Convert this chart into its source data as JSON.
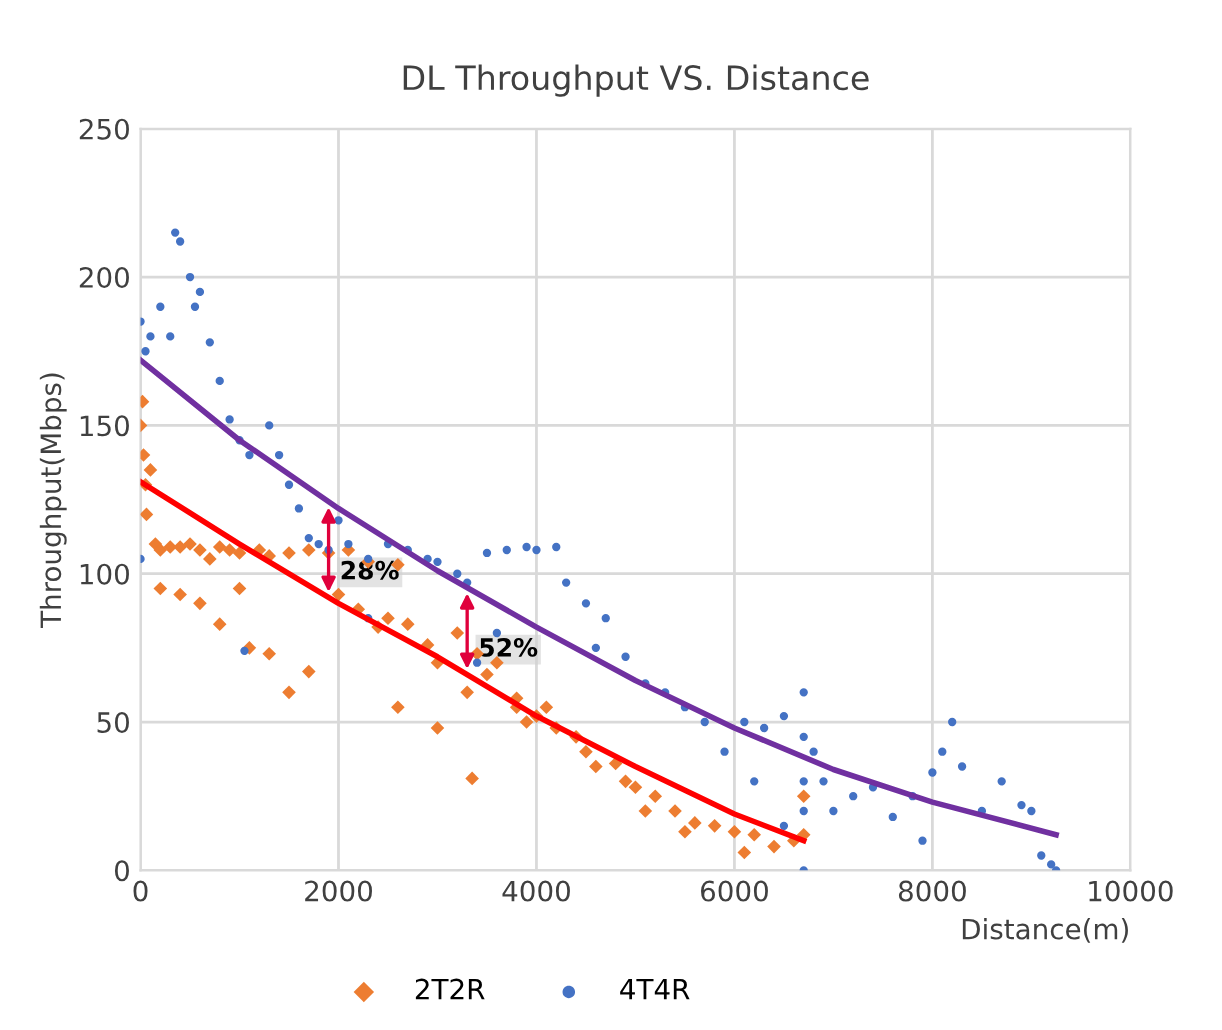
{
  "chart_data": {
    "type": "scatter",
    "title": "DL Throughput VS. Distance",
    "xlabel": "Distance(m)",
    "ylabel": "Throughput(Mbps)",
    "xlim": [
      0,
      10000
    ],
    "xticks": [
      0,
      2000,
      4000,
      6000,
      8000,
      10000
    ],
    "ylim": [
      0,
      250
    ],
    "yticks": [
      0,
      50,
      100,
      150,
      200,
      250
    ],
    "grid": true,
    "legend": "bottom",
    "series": [
      {
        "name": "2T2R",
        "color": "#ed7d31",
        "marker": "diamond",
        "x": [
          0,
          20,
          30,
          50,
          60,
          100,
          150,
          200,
          300,
          400,
          500,
          600,
          700,
          800,
          900,
          1000,
          1200,
          1300,
          1500,
          1700,
          1900,
          2100,
          2300,
          2600,
          200,
          400,
          600,
          800,
          1100,
          1300,
          1500,
          1700,
          2000,
          2200,
          2400,
          2500,
          2700,
          2900,
          3000,
          3200,
          3300,
          3400,
          3500,
          3600,
          3800,
          3900,
          4100,
          4200,
          4400,
          4600,
          4800,
          5000,
          5200,
          5400,
          5600,
          5800,
          6000,
          6200,
          6400,
          6600,
          6700,
          6700,
          3800,
          4000,
          3000,
          2600,
          4500,
          5100,
          4900,
          5500,
          6100,
          1000,
          3350
        ],
        "values": [
          150,
          158,
          140,
          130,
          120,
          135,
          110,
          108,
          109,
          109,
          110,
          108,
          105,
          109,
          108,
          107,
          108,
          106,
          107,
          108,
          107,
          108,
          104,
          103,
          95,
          93,
          90,
          83,
          75,
          73,
          60,
          67,
          93,
          88,
          82,
          85,
          83,
          76,
          70,
          80,
          60,
          73,
          66,
          70,
          55,
          50,
          55,
          48,
          45,
          35,
          36,
          28,
          25,
          20,
          16,
          15,
          13,
          12,
          8,
          10,
          12,
          25,
          58,
          52,
          48,
          55,
          40,
          20,
          30,
          13,
          6,
          95,
          31
        ]
      },
      {
        "name": "4T4R",
        "color": "#4472c4",
        "marker": "circle",
        "x": [
          0,
          50,
          100,
          200,
          300,
          350,
          400,
          500,
          550,
          600,
          700,
          800,
          900,
          1000,
          1100,
          1300,
          1400,
          1500,
          1600,
          1700,
          1800,
          1900,
          2000,
          2100,
          2300,
          2500,
          2700,
          2900,
          3000,
          3200,
          3300,
          3500,
          3700,
          3900,
          4000,
          4200,
          4300,
          4500,
          4700,
          4900,
          5100,
          5300,
          5500,
          5700,
          5900,
          6100,
          6300,
          6500,
          6700,
          6700,
          6700,
          6700,
          6700,
          6800,
          6900,
          7000,
          7200,
          7400,
          7600,
          7800,
          8000,
          8100,
          8200,
          8300,
          8500,
          8700,
          8900,
          9000,
          9100,
          9200,
          9250,
          0,
          1050,
          2300,
          3400,
          3600,
          4600,
          6200,
          6500,
          7900
        ],
        "values": [
          185,
          175,
          180,
          190,
          180,
          215,
          212,
          200,
          190,
          195,
          178,
          165,
          152,
          145,
          140,
          150,
          140,
          130,
          122,
          112,
          110,
          108,
          118,
          110,
          105,
          110,
          108,
          105,
          104,
          100,
          97,
          107,
          108,
          109,
          108,
          109,
          97,
          90,
          85,
          72,
          63,
          60,
          55,
          50,
          40,
          50,
          48,
          52,
          60,
          45,
          30,
          20,
          0,
          40,
          30,
          20,
          25,
          28,
          18,
          25,
          33,
          40,
          50,
          35,
          20,
          30,
          22,
          20,
          5,
          2,
          0,
          105,
          74,
          85,
          70,
          80,
          75,
          30,
          15,
          10
        ]
      },
      {
        "type": "line",
        "color": "#ff0000",
        "x": [
          0,
          1000,
          2000,
          3000,
          4000,
          5000,
          6000,
          6700
        ],
        "values": [
          131,
          110,
          90,
          72,
          52,
          35,
          19,
          10
        ]
      },
      {
        "type": "line",
        "color": "#7030a0",
        "x": [
          0,
          1000,
          2000,
          3000,
          4000,
          5000,
          6000,
          7000,
          8000,
          9250
        ],
        "values": [
          172,
          145,
          122,
          101,
          82,
          64,
          48,
          34,
          23,
          12
        ]
      }
    ],
    "annotations": [
      {
        "text": "28%",
        "x": 1900,
        "y": 92
      },
      {
        "text": "52%",
        "x": 3300,
        "y": 66
      }
    ]
  }
}
